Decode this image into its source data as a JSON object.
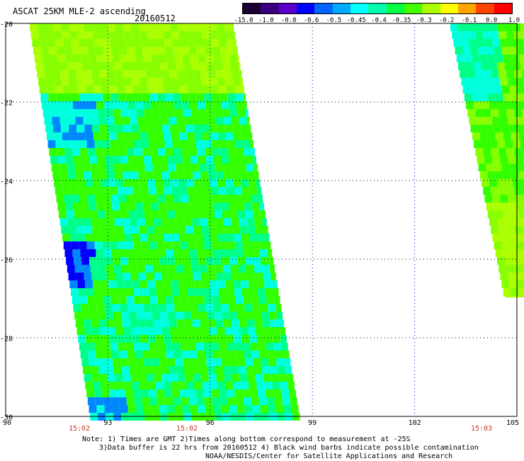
{
  "header": {
    "title": "ASCAT 25KM MLE-2 ascending",
    "date": "20160512"
  },
  "colorbar": {
    "labels": [
      "-15.0",
      "-1.0",
      "-0.8",
      "-0.6",
      "-0.5",
      "-0.45",
      "-0.4",
      "-0.35",
      "-0.3",
      "-0.2",
      "-0.1",
      "0.0",
      "1.0"
    ],
    "colors": [
      "#1a0033",
      "#3a0080",
      "#5a00c8",
      "#0000ff",
      "#0066ff",
      "#00aaff",
      "#00ffff",
      "#00ffaa",
      "#00ff44",
      "#44ff00",
      "#aaff00",
      "#ffff00",
      "#ffa500",
      "#ff4400",
      "#ff0000"
    ]
  },
  "axes": {
    "lat_labels": [
      "-20",
      "-22",
      "-24",
      "-26",
      "-28",
      "-30"
    ],
    "lon_labels": [
      "90",
      "93",
      "96",
      "99",
      "102",
      "105"
    ],
    "time_labels": [
      "15:02",
      "15:02",
      "15:03"
    ]
  },
  "notes": {
    "line1": "Note: 1) Times are GMT 2)Times along bottom correspond to measurement at -25S",
    "line2": "3)Data buffer is 22 hrs from 20160512 4) Black wind barbs indicate possible contamination",
    "line3": "NOAA/NESDIS/Center for Satellite Applications and Research"
  },
  "map_data": {
    "lat_range": [
      -30,
      -20
    ],
    "lon_range": [
      90,
      105
    ],
    "swaths": [
      {
        "name": "swath-west"
      },
      {
        "name": "swath-east"
      }
    ],
    "palette": {
      "green": "#33ff00",
      "lightgreen": "#88ff00",
      "yellowgreen": "#aaff00",
      "aqua": "#00ff88",
      "cyan": "#00ffdd",
      "blue": "#0088ff",
      "darkblue": "#0000ff",
      "purple": "#4400aa"
    }
  }
}
